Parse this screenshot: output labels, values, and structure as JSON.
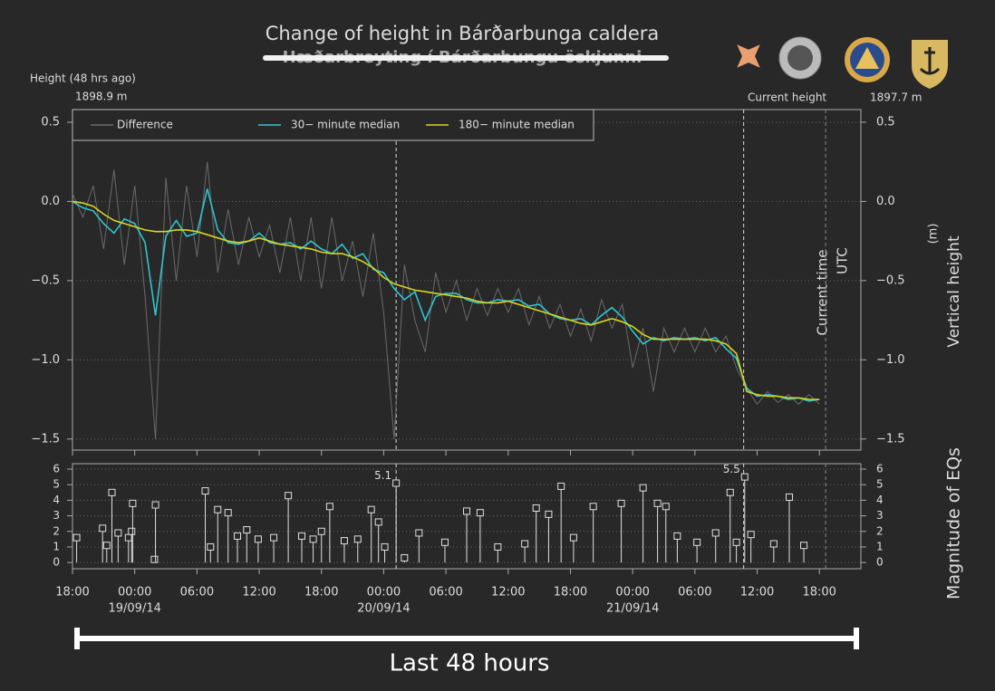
{
  "page": {
    "height_ago_label": "Height (48 hrs ago)",
    "height_ago_value": "1898.9 m",
    "current_height_label": "Current height",
    "current_height_value": "1897.7 m",
    "span_label": "Last 48 hours"
  },
  "chart_data": [
    {
      "type": "line",
      "title": "Change of height in Bárðarbunga caldera",
      "subtitle": "Hæðarbreyting í Bárðarbungu öskjunni",
      "y_label": "Vertical height",
      "y_unit": "(m)",
      "current_time_label": "Current time",
      "time_zone_label": "UTC",
      "xlim": [
        0,
        76
      ],
      "ylim": [
        -1.57,
        0.58
      ],
      "yticks": [
        {
          "value": 0.5,
          "label": "0.5"
        },
        {
          "value": 0,
          "label": "0.0"
        },
        {
          "value": -0.5,
          "label": "−0.5"
        },
        {
          "value": -1,
          "label": "−1.0"
        },
        {
          "value": -1.5,
          "label": "−1.5"
        }
      ],
      "grid": true,
      "vlines": [
        31.2,
        64.7,
        72.6
      ],
      "x": [
        0,
        1,
        2,
        3,
        4,
        5,
        6,
        7,
        8,
        9,
        10,
        11,
        12,
        13,
        14,
        15,
        16,
        17,
        18,
        19,
        20,
        21,
        22,
        23,
        24,
        25,
        26,
        27,
        28,
        29,
        30,
        31,
        32,
        33,
        34,
        35,
        36,
        37,
        38,
        39,
        40,
        41,
        42,
        43,
        44,
        45,
        46,
        47,
        48,
        49,
        50,
        51,
        52,
        53,
        54,
        55,
        56,
        57,
        58,
        59,
        60,
        61,
        62,
        63,
        64,
        65,
        66,
        67,
        68,
        69,
        70,
        71,
        72
      ],
      "series": [
        {
          "name": "Difference",
          "color": "#6a6a6a",
          "values": [
            0.05,
            -0.1,
            0.1,
            -0.3,
            0.2,
            -0.4,
            0.1,
            -0.6,
            -1.5,
            0.15,
            -0.5,
            0.1,
            -0.35,
            0.25,
            -0.45,
            -0.05,
            -0.4,
            -0.1,
            -0.35,
            -0.15,
            -0.45,
            -0.1,
            -0.5,
            -0.1,
            -0.55,
            -0.1,
            -0.5,
            -0.25,
            -0.6,
            -0.2,
            -0.7,
            -1.5,
            -0.4,
            -0.75,
            -0.95,
            -0.45,
            -0.7,
            -0.5,
            -0.75,
            -0.55,
            -0.72,
            -0.55,
            -0.7,
            -0.55,
            -0.78,
            -0.6,
            -0.8,
            -0.65,
            -0.85,
            -0.68,
            -0.88,
            -0.62,
            -0.8,
            -0.65,
            -1.05,
            -0.8,
            -1.2,
            -0.8,
            -0.95,
            -0.8,
            -0.95,
            -0.8,
            -0.95,
            -0.85,
            -1.05,
            -1.18,
            -1.28,
            -1.2,
            -1.27,
            -1.22,
            -1.28,
            -1.22,
            -1.28
          ]
        },
        {
          "name": "30− minute median",
          "color": "#2ec4cf",
          "values": [
            0.0,
            -0.04,
            -0.06,
            -0.14,
            -0.2,
            -0.11,
            -0.14,
            -0.26,
            -0.72,
            -0.22,
            -0.12,
            -0.22,
            -0.2,
            0.08,
            -0.18,
            -0.26,
            -0.27,
            -0.25,
            -0.2,
            -0.26,
            -0.27,
            -0.26,
            -0.3,
            -0.25,
            -0.3,
            -0.33,
            -0.27,
            -0.36,
            -0.33,
            -0.43,
            -0.45,
            -0.55,
            -0.62,
            -0.57,
            -0.75,
            -0.6,
            -0.58,
            -0.58,
            -0.62,
            -0.64,
            -0.64,
            -0.62,
            -0.63,
            -0.62,
            -0.66,
            -0.65,
            -0.71,
            -0.74,
            -0.75,
            -0.74,
            -0.78,
            -0.72,
            -0.67,
            -0.73,
            -0.82,
            -0.9,
            -0.86,
            -0.88,
            -0.86,
            -0.87,
            -0.86,
            -0.88,
            -0.86,
            -0.93,
            -0.99,
            -1.18,
            -1.23,
            -1.22,
            -1.23,
            -1.25,
            -1.24,
            -1.26,
            -1.25
          ]
        },
        {
          "name": "180− minute median",
          "color": "#d8d420",
          "values": [
            0,
            -0.01,
            -0.03,
            -0.08,
            -0.12,
            -0.14,
            -0.16,
            -0.18,
            -0.19,
            -0.19,
            -0.18,
            -0.18,
            -0.19,
            -0.21,
            -0.23,
            -0.25,
            -0.26,
            -0.25,
            -0.23,
            -0.25,
            -0.27,
            -0.28,
            -0.29,
            -0.3,
            -0.32,
            -0.33,
            -0.33,
            -0.35,
            -0.38,
            -0.42,
            -0.48,
            -0.52,
            -0.54,
            -0.56,
            -0.57,
            -0.58,
            -0.59,
            -0.6,
            -0.61,
            -0.63,
            -0.64,
            -0.64,
            -0.63,
            -0.65,
            -0.67,
            -0.69,
            -0.71,
            -0.73,
            -0.75,
            -0.77,
            -0.78,
            -0.76,
            -0.74,
            -0.76,
            -0.79,
            -0.84,
            -0.87,
            -0.87,
            -0.87,
            -0.87,
            -0.87,
            -0.87,
            -0.88,
            -0.9,
            -0.96,
            -1.2,
            -1.22,
            -1.23,
            -1.23,
            -1.24,
            -1.24,
            -1.25,
            -1.25
          ]
        }
      ]
    },
    {
      "type": "stem",
      "y_label": "Magnitude of EQs",
      "color": "#e0e0e0",
      "xlim": [
        0,
        76
      ],
      "ylim": [
        -0.4,
        6.35
      ],
      "yticks": [
        0,
        1,
        2,
        3,
        4,
        5,
        6
      ],
      "grid": true,
      "xticks": [
        {
          "value": 0,
          "label": "18:00"
        },
        {
          "value": 6,
          "label": "00:00"
        },
        {
          "value": 12,
          "label": "06:00"
        },
        {
          "value": 18,
          "label": "12:00"
        },
        {
          "value": 24,
          "label": "18:00"
        },
        {
          "value": 30,
          "label": "00:00"
        },
        {
          "value": 36,
          "label": "06:00"
        },
        {
          "value": 42,
          "label": "12:00"
        },
        {
          "value": 48,
          "label": "18:00"
        },
        {
          "value": 54,
          "label": "00:00"
        },
        {
          "value": 60,
          "label": "06:00"
        },
        {
          "value": 66,
          "label": "12:00"
        },
        {
          "value": 72,
          "label": "18:00"
        }
      ],
      "date_labels": [
        {
          "value": 6,
          "label": "19/09/14"
        },
        {
          "value": 30,
          "label": "20/09/14"
        },
        {
          "value": 54,
          "label": "21/09/14"
        }
      ],
      "x": [
        0.4,
        2.9,
        3.3,
        3.8,
        4.4,
        5.4,
        5.7,
        5.8,
        7.9,
        8.0,
        12.8,
        13.3,
        14.0,
        15.0,
        15.9,
        16.8,
        17.9,
        19.4,
        20.8,
        22.1,
        23.2,
        24.0,
        24.8,
        26.2,
        27.5,
        28.8,
        29.5,
        30.1,
        31.2,
        32.0,
        33.4,
        35.9,
        38.0,
        39.3,
        41.0,
        43.6,
        44.7,
        45.9,
        47.1,
        48.3,
        50.2,
        52.9,
        55.0,
        56.4,
        57.2,
        58.3,
        60.2,
        62.0,
        63.4,
        64.0,
        64.8,
        65.4,
        67.6,
        69.1,
        70.5
      ],
      "values": [
        1.6,
        2.2,
        1.1,
        4.5,
        1.9,
        1.6,
        2.0,
        3.8,
        0.2,
        3.7,
        4.6,
        1.0,
        3.4,
        3.2,
        1.7,
        2.1,
        1.5,
        1.6,
        4.3,
        1.7,
        1.5,
        2.0,
        3.6,
        1.4,
        1.5,
        3.4,
        2.6,
        1.0,
        5.1,
        0.3,
        1.9,
        1.3,
        3.3,
        3.2,
        1.0,
        1.2,
        3.5,
        3.1,
        4.9,
        1.6,
        3.6,
        3.8,
        4.8,
        3.8,
        3.6,
        1.7,
        1.3,
        1.9,
        4.5,
        1.3,
        5.5,
        1.8,
        1.2,
        4.2,
        1.1
      ]
    }
  ]
}
